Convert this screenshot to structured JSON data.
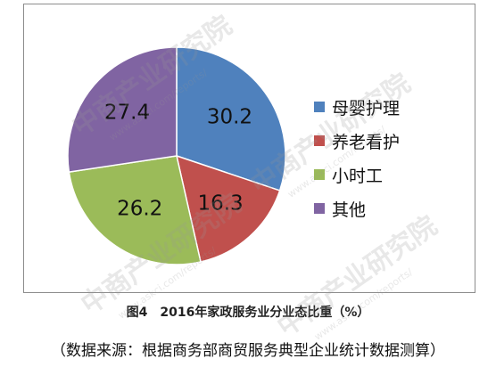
{
  "chart_data": {
    "type": "pie",
    "categories": [
      "母婴护理",
      "养老看护",
      "小时工",
      "其他"
    ],
    "values": [
      30.2,
      16.3,
      26.2,
      27.4
    ],
    "colors": [
      "#4f81bd",
      "#c0504d",
      "#9bbb59",
      "#8064a2"
    ],
    "value_labels": [
      "30.2",
      "16.3",
      "26.2",
      "27.4"
    ],
    "legend_position": "right"
  },
  "caption": "图4　2016年家政服务业分业态比重（%）",
  "source": "（数据来源：根据商务部商贸服务典型企业统计数据测算）",
  "watermark": {
    "brand": "中商产业研究院",
    "url": "www.askci.com/reports/"
  }
}
